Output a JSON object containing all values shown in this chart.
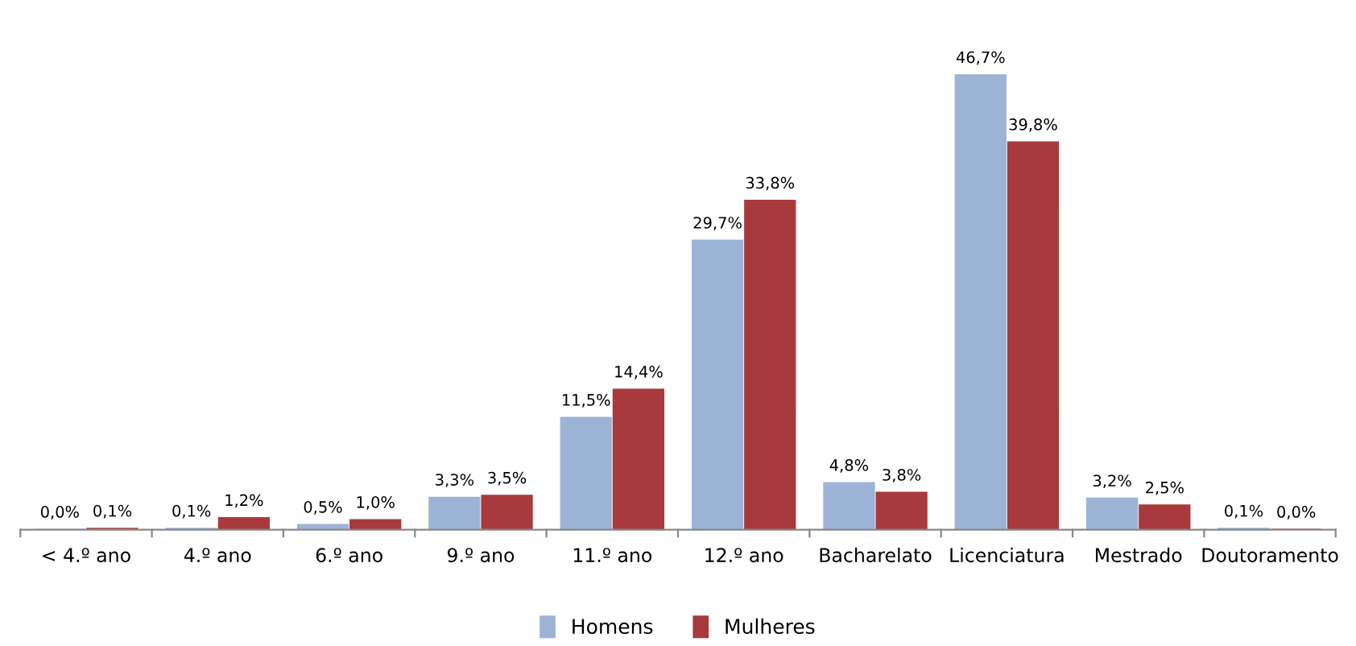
{
  "chart_data": {
    "type": "bar",
    "categories": [
      "< 4.º ano",
      "4.º ano",
      "6.º ano",
      "9.º ano",
      "11.º ano",
      "12.º ano",
      "Bacharelato",
      "Licenciatura",
      "Mestrado",
      "Doutoramento"
    ],
    "series": [
      {
        "name": "Homens",
        "color": "#9db3d6",
        "values": [
          0.0,
          0.1,
          0.5,
          3.3,
          11.5,
          29.7,
          4.8,
          46.7,
          3.2,
          0.1
        ],
        "value_labels": [
          "0,0%",
          "0,1%",
          "0,5%",
          "3,3%",
          "11,5%",
          "29,7%",
          "4,8%",
          "46,7%",
          "3,2%",
          "0,1%"
        ]
      },
      {
        "name": "Mulheres",
        "color": "#a83a3d",
        "values": [
          0.1,
          1.2,
          1.0,
          3.5,
          14.4,
          33.8,
          3.8,
          39.8,
          2.5,
          0.0
        ],
        "value_labels": [
          "0,1%",
          "1,2%",
          "1,0%",
          "3,5%",
          "14,4%",
          "33,8%",
          "3,8%",
          "39,8%",
          "2,5%",
          "0,0%"
        ]
      }
    ],
    "legend": "bottom",
    "grid": false
  }
}
